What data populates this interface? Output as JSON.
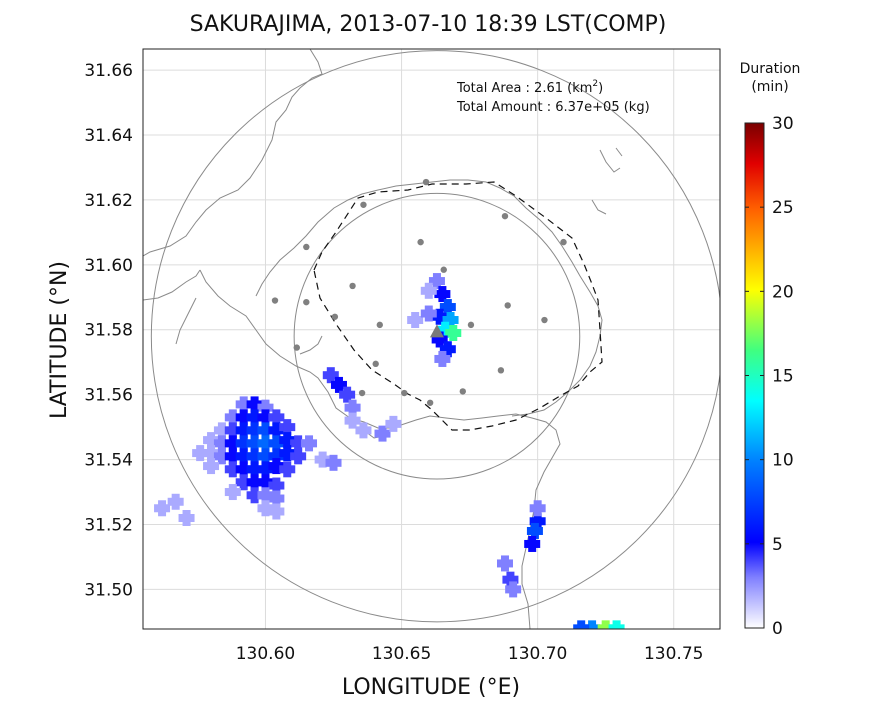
{
  "chart_data": {
    "type": "heatmap",
    "title": "SAKURAJIMA, 2013-07-10 18:39 LST(COMP)",
    "xlabel": "LONGITUDE (°E)",
    "ylabel": "LATITUDE (°N)",
    "xlim": [
      130.555,
      130.767
    ],
    "ylim": [
      31.4878,
      31.6665
    ],
    "x_ticks": [
      130.6,
      130.65,
      130.7,
      130.75
    ],
    "x_tick_labels": [
      "130.60",
      "130.65",
      "130.70",
      "130.75"
    ],
    "y_ticks": [
      31.5,
      31.52,
      31.54,
      31.56,
      31.58,
      31.6,
      31.62,
      31.64,
      31.66
    ],
    "y_tick_labels": [
      "31.50",
      "31.52",
      "31.54",
      "31.56",
      "31.58",
      "31.60",
      "31.62",
      "31.64",
      "31.66"
    ],
    "grid": true,
    "annotations": {
      "total_area_label": "Total Area   : 2.61 (km",
      "total_area_sup": "2",
      "total_area_close": ")",
      "total_amount": "Total Amount : 6.37e+05 (kg)"
    },
    "colorbar": {
      "title_line1": "Duration",
      "title_line2": "(min)",
      "range": [
        0,
        30
      ],
      "ticks": [
        0,
        5,
        10,
        15,
        20,
        25,
        30
      ],
      "tick_labels": [
        "0",
        "5",
        "10",
        "15",
        "20",
        "25",
        "30"
      ],
      "colormap": "jet"
    },
    "range_circles_center": [
      130.663,
      31.578
    ],
    "range_circle_radii_deg_lat": [
      0.044,
      0.088
    ],
    "vent": [
      130.663,
      31.5795
    ],
    "stations": [
      [
        130.636,
        31.6185
      ],
      [
        130.659,
        31.6255
      ],
      [
        130.615,
        31.6055
      ],
      [
        130.657,
        31.607
      ],
      [
        130.688,
        31.615
      ],
      [
        130.7095,
        31.607
      ],
      [
        130.6035,
        31.589
      ],
      [
        130.615,
        31.5885
      ],
      [
        130.6255,
        31.584
      ],
      [
        130.632,
        31.5935
      ],
      [
        130.642,
        31.5815
      ],
      [
        130.6655,
        31.5985
      ],
      [
        130.689,
        31.5875
      ],
      [
        130.7025,
        31.583
      ],
      [
        130.6755,
        31.5815
      ],
      [
        130.6115,
        31.5745
      ],
      [
        130.6405,
        31.5695
      ],
      [
        130.6865,
        31.5675
      ],
      [
        130.6725,
        31.561
      ],
      [
        130.651,
        31.5605
      ],
      [
        130.6355,
        31.5605
      ],
      [
        130.6605,
        31.5575
      ]
    ],
    "cells": [
      [
        130.592,
        31.557,
        3
      ],
      [
        130.596,
        31.557,
        5
      ],
      [
        130.6,
        31.556,
        3
      ],
      [
        130.588,
        31.553,
        3
      ],
      [
        130.592,
        31.553,
        5
      ],
      [
        130.596,
        31.553,
        6
      ],
      [
        130.6,
        31.553,
        5
      ],
      [
        130.604,
        31.553,
        4
      ],
      [
        130.584,
        31.549,
        2
      ],
      [
        130.588,
        31.549,
        4
      ],
      [
        130.592,
        31.549,
        6
      ],
      [
        130.596,
        31.549,
        7
      ],
      [
        130.6,
        31.549,
        8
      ],
      [
        130.604,
        31.549,
        6
      ],
      [
        130.608,
        31.55,
        4
      ],
      [
        130.58,
        31.546,
        2
      ],
      [
        130.584,
        31.545,
        3
      ],
      [
        130.588,
        31.545,
        5
      ],
      [
        130.592,
        31.545,
        7
      ],
      [
        130.596,
        31.545,
        8
      ],
      [
        130.6,
        31.545,
        9
      ],
      [
        130.604,
        31.545,
        8
      ],
      [
        130.608,
        31.546,
        6
      ],
      [
        130.612,
        31.545,
        4
      ],
      [
        130.616,
        31.545,
        3
      ],
      [
        130.576,
        31.542,
        2
      ],
      [
        130.58,
        31.542,
        2
      ],
      [
        130.584,
        31.541,
        3
      ],
      [
        130.588,
        31.541,
        5
      ],
      [
        130.592,
        31.541,
        6
      ],
      [
        130.596,
        31.541,
        7
      ],
      [
        130.6,
        31.541,
        8
      ],
      [
        130.604,
        31.541,
        7
      ],
      [
        130.608,
        31.542,
        6
      ],
      [
        130.612,
        31.541,
        4
      ],
      [
        130.58,
        31.538,
        2
      ],
      [
        130.588,
        31.537,
        4
      ],
      [
        130.592,
        31.537,
        5
      ],
      [
        130.596,
        31.537,
        6
      ],
      [
        130.6,
        31.537,
        6
      ],
      [
        130.604,
        31.538,
        5
      ],
      [
        130.608,
        31.537,
        4
      ],
      [
        130.592,
        31.533,
        4
      ],
      [
        130.596,
        31.533,
        5
      ],
      [
        130.6,
        31.533,
        5
      ],
      [
        130.604,
        31.532,
        4
      ],
      [
        130.588,
        31.53,
        2
      ],
      [
        130.596,
        31.529,
        4
      ],
      [
        130.6,
        31.529,
        3
      ],
      [
        130.604,
        31.528,
        3
      ],
      [
        130.6,
        31.525,
        2
      ],
      [
        130.604,
        31.524,
        2
      ],
      [
        130.567,
        31.527,
        2
      ],
      [
        130.562,
        31.525,
        2
      ],
      [
        130.571,
        31.522,
        2
      ],
      [
        130.624,
        31.566,
        4
      ],
      [
        130.627,
        31.563,
        5
      ],
      [
        130.63,
        31.56,
        4
      ],
      [
        130.632,
        31.556,
        3
      ],
      [
        130.632,
        31.552,
        2
      ],
      [
        130.621,
        31.54,
        2
      ],
      [
        130.625,
        31.539,
        3
      ],
      [
        130.636,
        31.549,
        2
      ],
      [
        130.643,
        31.548,
        3
      ],
      [
        130.647,
        31.551,
        2
      ],
      [
        130.663,
        31.595,
        3
      ],
      [
        130.665,
        31.591,
        5
      ],
      [
        130.667,
        31.587,
        8
      ],
      [
        130.664,
        31.584,
        6
      ],
      [
        130.668,
        31.583,
        11
      ],
      [
        130.666,
        31.58,
        13
      ],
      [
        130.669,
        31.579,
        16
      ],
      [
        130.664,
        31.577,
        5
      ],
      [
        130.667,
        31.574,
        6
      ],
      [
        130.665,
        31.571,
        3
      ],
      [
        130.66,
        31.592,
        2
      ],
      [
        130.655,
        31.583,
        2
      ],
      [
        130.66,
        31.585,
        3
      ],
      [
        130.7,
        31.521,
        6
      ],
      [
        130.699,
        31.518,
        8
      ],
      [
        130.698,
        31.514,
        5
      ],
      [
        130.7,
        31.525,
        3
      ],
      [
        130.688,
        31.508,
        3
      ],
      [
        130.69,
        31.503,
        4
      ],
      [
        130.691,
        31.5,
        3
      ],
      [
        130.72,
        31.488,
        10
      ],
      [
        130.725,
        31.488,
        18
      ],
      [
        130.729,
        31.488,
        14
      ],
      [
        130.716,
        31.488,
        8
      ]
    ]
  }
}
